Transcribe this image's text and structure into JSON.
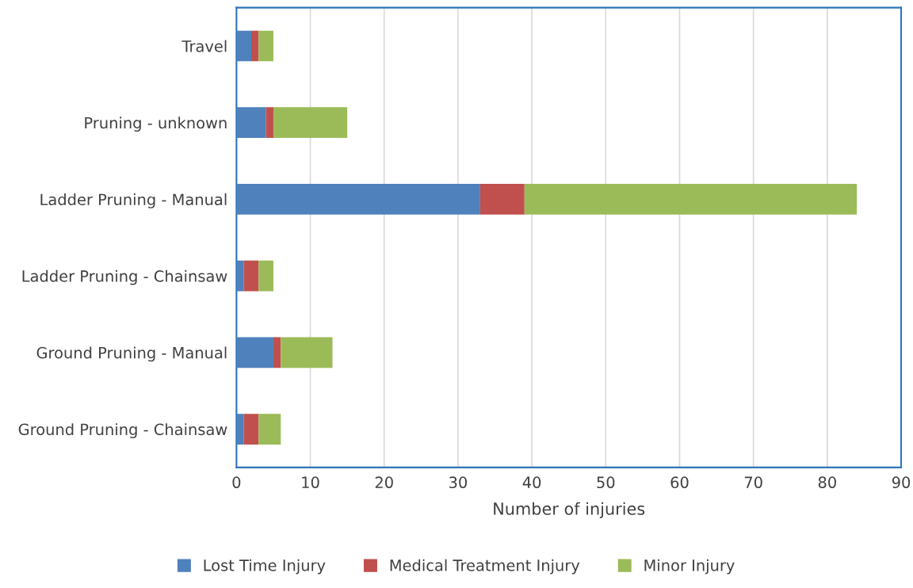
{
  "chart_data": {
    "type": "bar",
    "orientation": "horizontal",
    "stacked": true,
    "xlabel": "Number of injuries",
    "categories": [
      "Travel",
      "Pruning - unknown",
      "Ladder Pruning - Manual",
      "Ladder Pruning - Chainsaw",
      "Ground Pruning - Manual",
      "Ground Pruning - Chainsaw"
    ],
    "series": [
      {
        "name": "Lost Time Injury",
        "color": "#4f81bd",
        "values": [
          2,
          4,
          33,
          1,
          5,
          1
        ]
      },
      {
        "name": "Medical Treatment Injury",
        "color": "#c0504d",
        "values": [
          1,
          1,
          6,
          2,
          1,
          2
        ]
      },
      {
        "name": "Minor Injury",
        "color": "#9bbb59",
        "values": [
          2,
          10,
          45,
          2,
          7,
          3
        ]
      }
    ],
    "xlim": [
      0,
      90
    ],
    "xticks": [
      0,
      10,
      20,
      30,
      40,
      50,
      60,
      70,
      80,
      90
    ],
    "grid": "x",
    "legend": "bottom"
  }
}
